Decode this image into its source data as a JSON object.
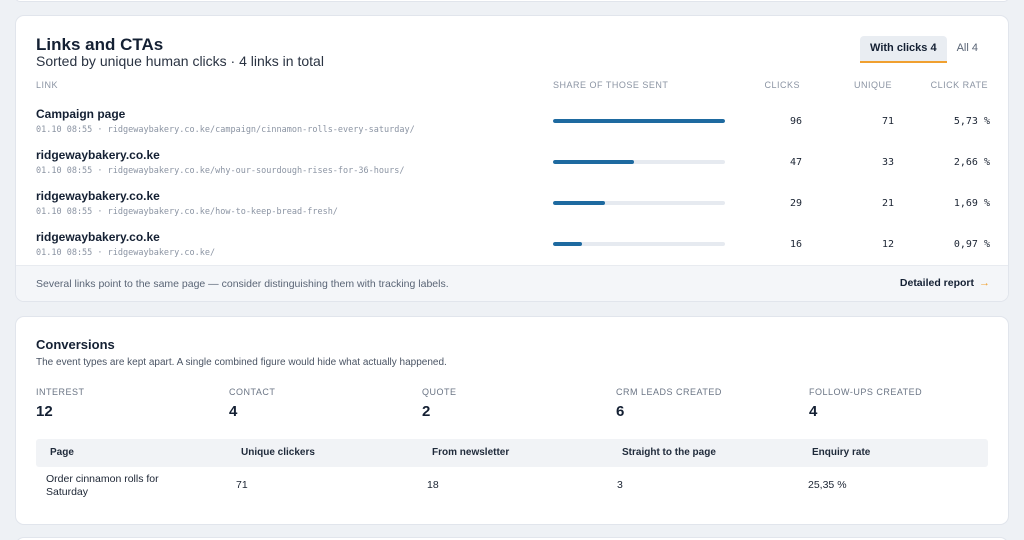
{
  "links": {
    "title": "Links and CTAs",
    "subtitle": "Sorted by unique human clicks · 4 links in total",
    "filters": [
      {
        "label": "With clicks 4",
        "active": true
      },
      {
        "label": "All 4",
        "active": false
      }
    ],
    "columns": {
      "link": "LINK",
      "share": "SHARE OF THOSE SENT",
      "clicks": "CLICKS",
      "unique": "UNIQUE",
      "rate": "CLICK RATE"
    },
    "rows": [
      {
        "title": "Campaign page",
        "meta": "01.10 08:55 · ridgewaybakery.co.ke/campaign/cinnamon-rolls-every-saturday/",
        "share_fraction": 1.0,
        "clicks": "96",
        "unique": "71",
        "rate": "5,73 %"
      },
      {
        "title": "ridgewaybakery.co.ke",
        "meta": "01.10 08:55 · ridgewaybakery.co.ke/why-our-sourdough-rises-for-36-hours/",
        "share_fraction": 0.47,
        "clicks": "47",
        "unique": "33",
        "rate": "2,66 %"
      },
      {
        "title": "ridgewaybakery.co.ke",
        "meta": "01.10 08:55 · ridgewaybakery.co.ke/how-to-keep-bread-fresh/",
        "share_fraction": 0.3,
        "clicks": "29",
        "unique": "21",
        "rate": "1,69 %"
      },
      {
        "title": "ridgewaybakery.co.ke",
        "meta": "01.10 08:55 · ridgewaybakery.co.ke/",
        "share_fraction": 0.17,
        "clicks": "16",
        "unique": "12",
        "rate": "0,97 %"
      }
    ],
    "footer_note": "Several links point to the same page — consider distinguishing them with tracking labels.",
    "footer_link": "Detailed report",
    "footer_icon": "arrow-right-icon",
    "accent_color": "#f0a030",
    "bar_color": "#1e6aa0"
  },
  "conversions": {
    "title": "Conversions",
    "subtitle": "The event types are kept apart. A single combined figure would hide what actually happened.",
    "stats": [
      {
        "label": "INTEREST",
        "value": "12"
      },
      {
        "label": "CONTACT",
        "value": "4"
      },
      {
        "label": "QUOTE",
        "value": "2"
      },
      {
        "label": "CRM LEADS CREATED",
        "value": "6"
      },
      {
        "label": "FOLLOW-UPS CREATED",
        "value": "4"
      }
    ],
    "table": {
      "headers": [
        "Page",
        "Unique clickers",
        "From newsletter",
        "Straight to the page",
        "Enquiry rate"
      ],
      "rows": [
        {
          "page": "Order cinnamon rolls for Saturday",
          "unique_clickers": "71",
          "from_newsletter": "18",
          "straight": "3",
          "enquiry_rate": "25,35 %"
        }
      ]
    }
  }
}
